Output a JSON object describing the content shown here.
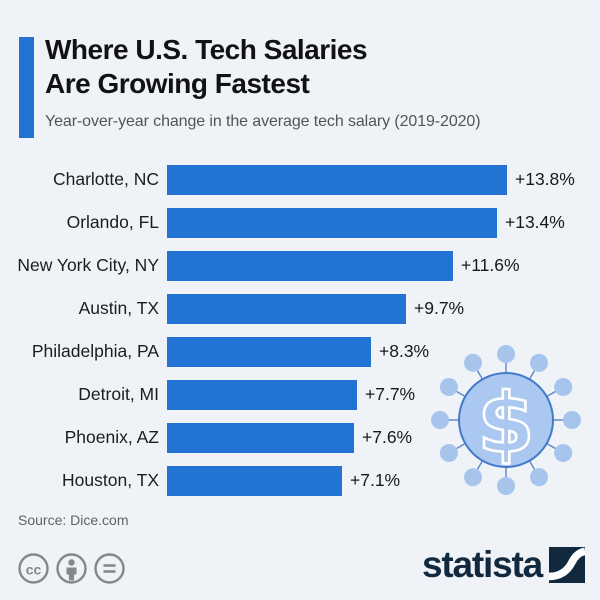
{
  "header": {
    "title_line1": "Where U.S. Tech Salaries",
    "title_line2": "Are Growing Fastest",
    "subtitle": "Year-over-year change in the average tech salary (2019-2020)"
  },
  "chart_data": {
    "type": "bar",
    "orientation": "horizontal",
    "title": "Where U.S. Tech Salaries Are Growing Fastest",
    "subtitle": "Year-over-year change in the average tech salary (2019-2020)",
    "categories": [
      "Charlotte, NC",
      "Orlando, FL",
      "New York City, NY",
      "Austin, TX",
      "Philadelphia, PA",
      "Detroit, MI",
      "Phoenix, AZ",
      "Houston, TX"
    ],
    "values": [
      13.8,
      13.4,
      11.6,
      9.7,
      8.3,
      7.7,
      7.6,
      7.1
    ],
    "value_labels": [
      "+13.8%",
      "+13.4%",
      "+11.6%",
      "+9.7%",
      "+8.3%",
      "+7.7%",
      "+7.6%",
      "+7.1%"
    ],
    "unit": "%",
    "xlabel": "",
    "ylabel": "",
    "xlim": [
      0,
      13.8
    ],
    "grid": false,
    "legend": "none",
    "bar_color": "#2273d3"
  },
  "footer": {
    "source": "Source: Dice.com",
    "license_icons": [
      "cc",
      "by",
      "nd"
    ],
    "brand": "statista"
  },
  "colors": {
    "background": "#eff3f8",
    "accent": "#2273d3",
    "bar": "#2273d3",
    "title_text": "#121212",
    "subtitle_text": "#51555a",
    "source_text": "#5f6368",
    "license_icon_gray": "#84888b",
    "brand_navy": "#12293d",
    "coin_fill": "#abc8f0",
    "coin_stroke": "#447bc8"
  },
  "decoration": {
    "dollar_symbol": "$"
  }
}
